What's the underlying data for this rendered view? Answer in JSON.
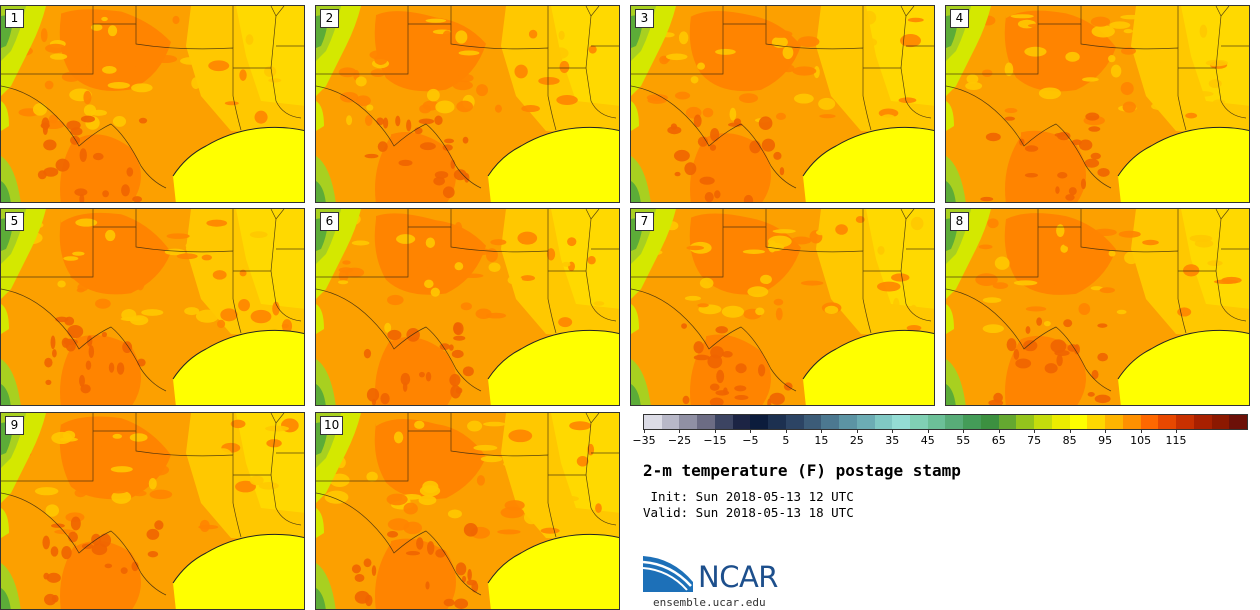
{
  "panels": [
    {
      "label": "1",
      "variant": 0
    },
    {
      "label": "2",
      "variant": 1
    },
    {
      "label": "3",
      "variant": 2
    },
    {
      "label": "4",
      "variant": 3
    },
    {
      "label": "5",
      "variant": 4
    },
    {
      "label": "6",
      "variant": 5
    },
    {
      "label": "7",
      "variant": 6
    },
    {
      "label": "8",
      "variant": 7
    },
    {
      "label": "9",
      "variant": 8
    },
    {
      "label": "10",
      "variant": 9
    }
  ],
  "legend": {
    "colors": [
      "#dcdce6",
      "#b8b8c8",
      "#9090a4",
      "#6c6c84",
      "#3c4462",
      "#1c2444",
      "#0c1c3c",
      "#1c3050",
      "#2c4464",
      "#3c5c78",
      "#4c7890",
      "#5c94a4",
      "#6cacb4",
      "#80c8c4",
      "#94dcd4",
      "#80d0b4",
      "#6cc098",
      "#58ac78",
      "#449c58",
      "#3c9040",
      "#64a830",
      "#94c41c",
      "#c4dc0c",
      "#ecec00",
      "#ffff00",
      "#ffd800",
      "#ffb400",
      "#ff9000",
      "#ff6800",
      "#e84800",
      "#c83000",
      "#a82000",
      "#8c1800",
      "#6c1008"
    ],
    "tick_labels": [
      "−35",
      "−25",
      "−15",
      "−5",
      "5",
      "15",
      "25",
      "35",
      "45",
      "55",
      "65",
      "75",
      "85",
      "95",
      "105",
      "115"
    ]
  },
  "title": "2-m temperature (F) postage stamp",
  "init_line": " Init: Sun 2018-05-13 12 UTC",
  "valid_line": "Valid: Sun 2018-05-13 18 UTC",
  "logo_text": "NCAR",
  "site": "ensemble.ucar.edu",
  "map_colors": {
    "base": "#fca000",
    "warm": "#ff8400",
    "hot": "#f06400",
    "mild": "#ffc800",
    "cool": "#ffe000",
    "gulf": "#ffff00",
    "green": "#a8d020",
    "darkgreen": "#5cac38",
    "lime": "#d4e800"
  }
}
